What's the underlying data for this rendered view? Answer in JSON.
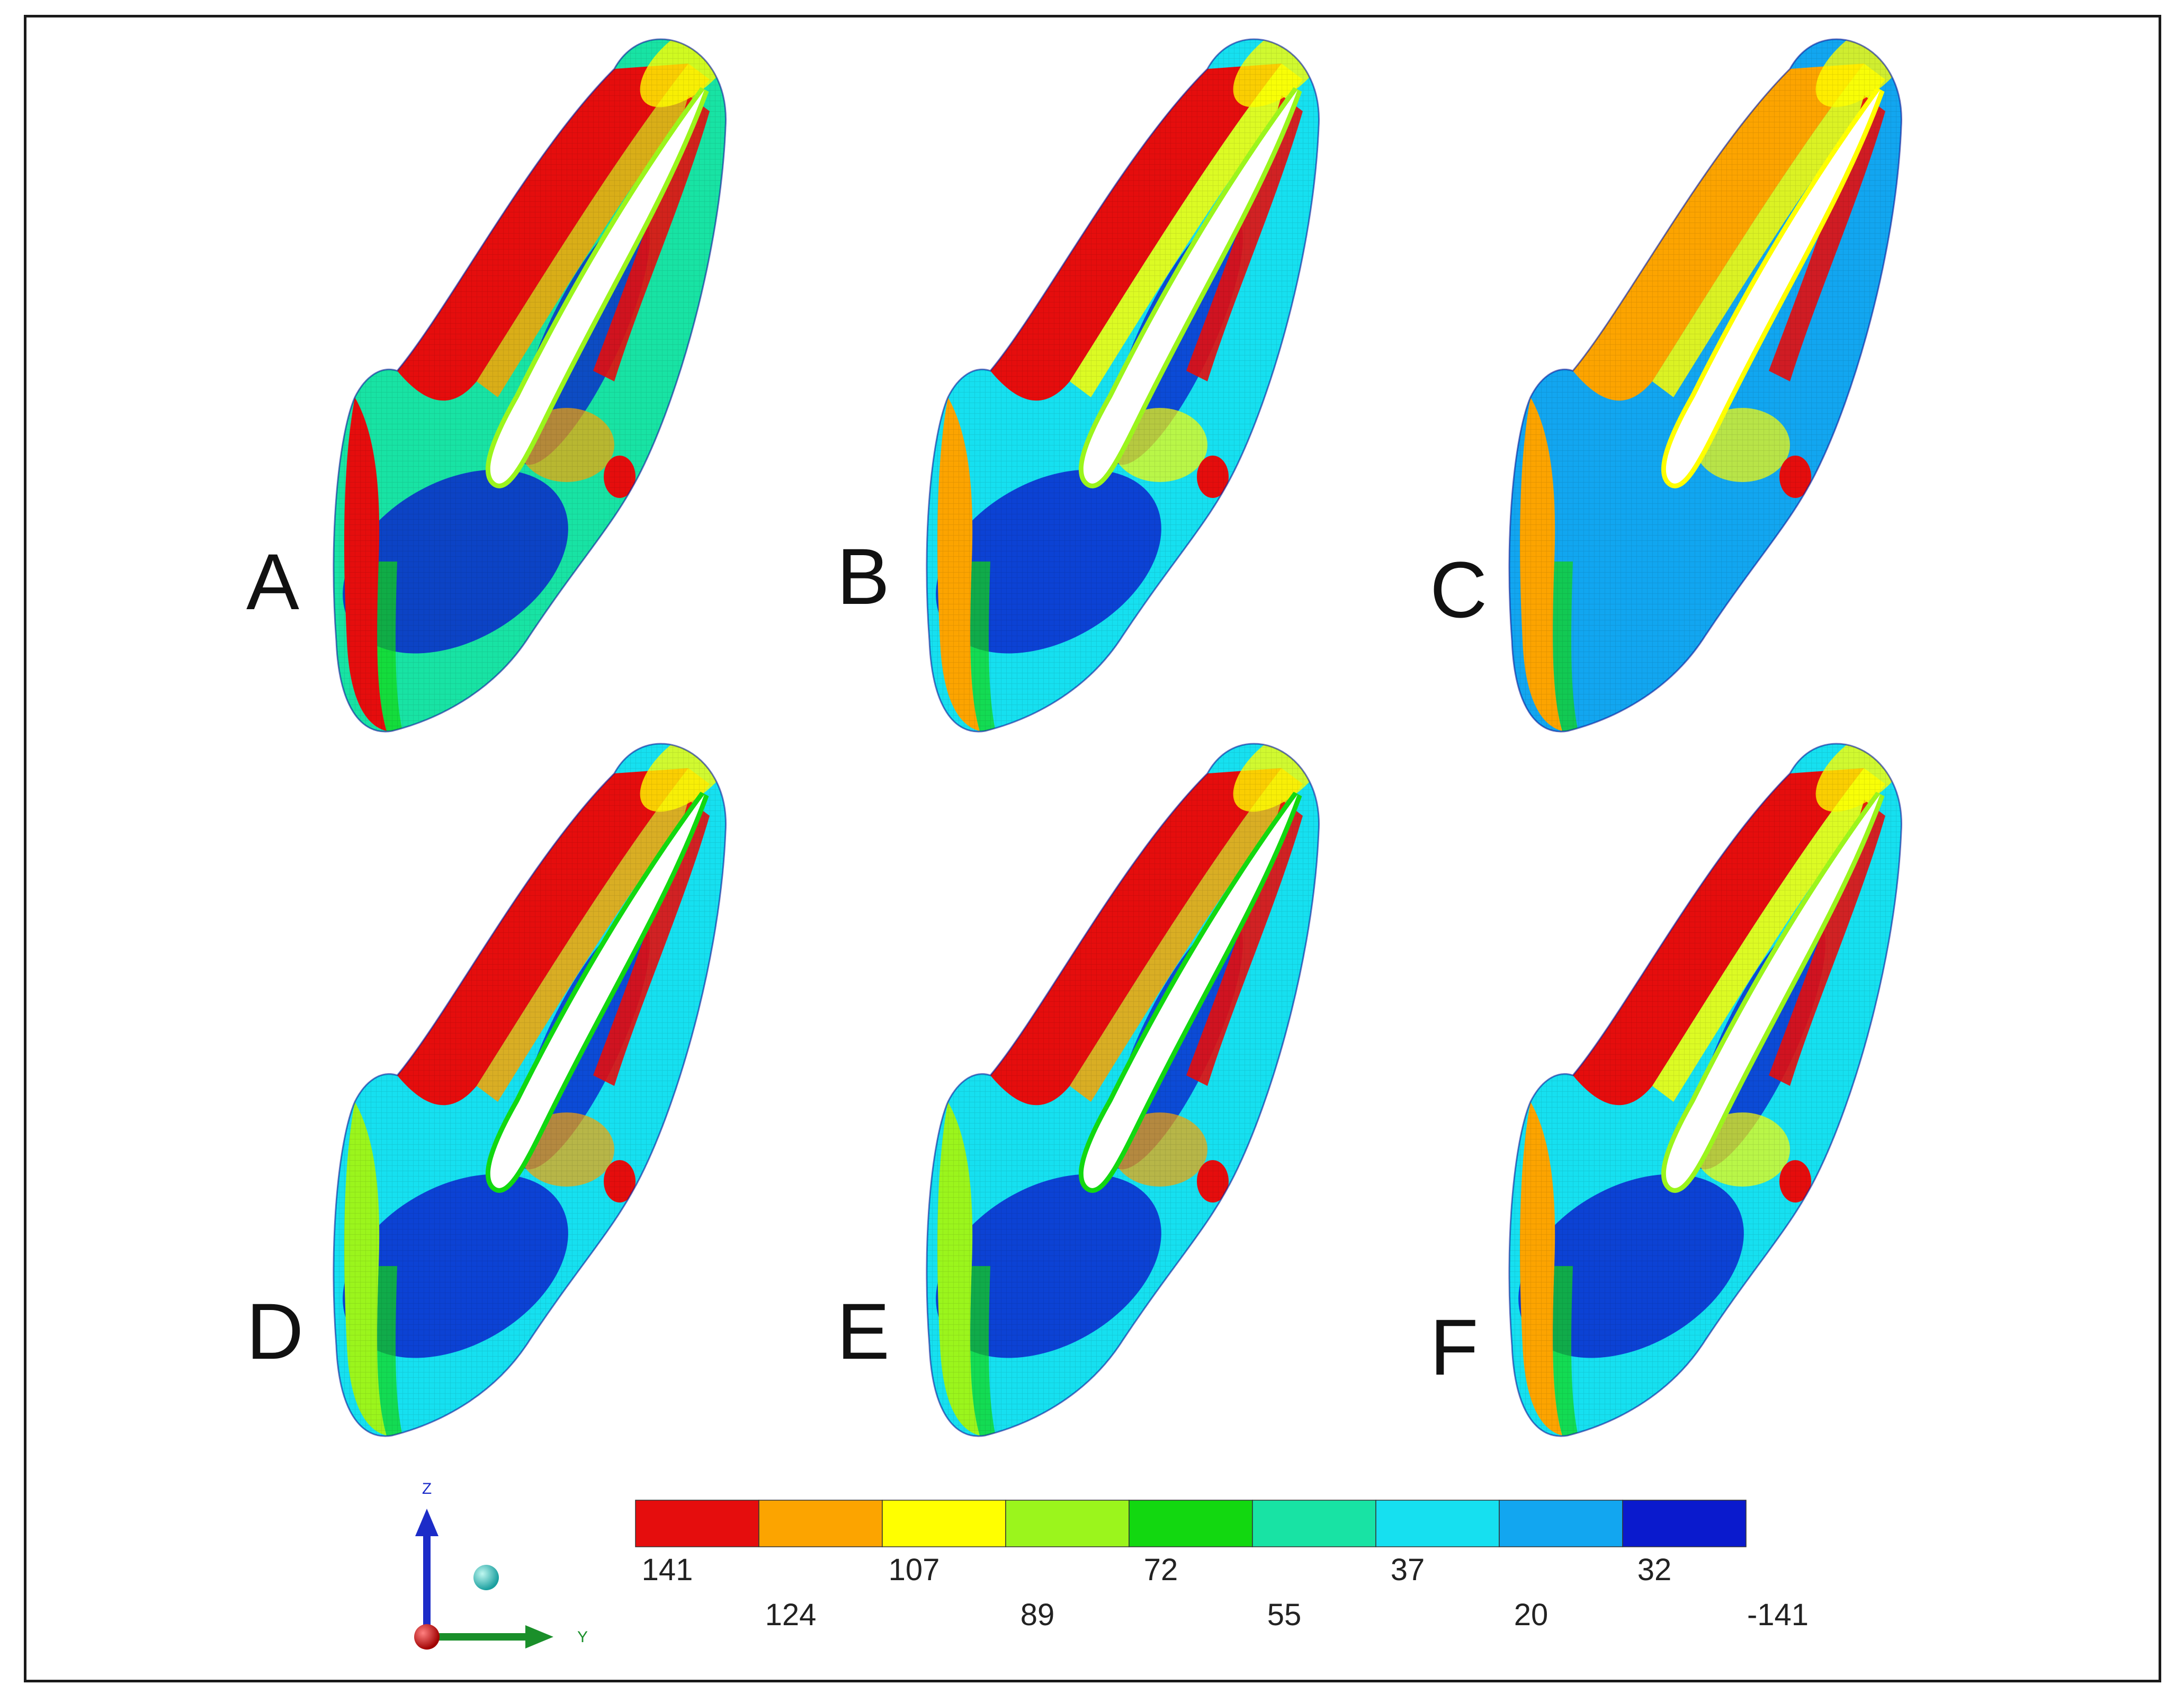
{
  "panels": [
    {
      "label": "A",
      "variant": "high"
    },
    {
      "label": "B",
      "variant": "mid"
    },
    {
      "label": "C",
      "variant": "orange"
    },
    {
      "label": "D",
      "variant": "low"
    },
    {
      "label": "E",
      "variant": "low"
    },
    {
      "label": "F",
      "variant": "mid"
    }
  ],
  "legend": {
    "colors": [
      "#e50d0d",
      "#fca400",
      "#ffff00",
      "#9bf51c",
      "#12d810",
      "#18e3a4",
      "#16e0f0",
      "#12a6f0",
      "#0a1acd"
    ],
    "upper_values": [
      "141",
      "107",
      "72",
      "37",
      "32"
    ],
    "lower_values": [
      "124",
      "89",
      "55",
      "20",
      "-141"
    ]
  },
  "axes": {
    "z_label": "Z",
    "y_label": "Y",
    "z_color": "#1c2cc8",
    "y_color": "#1a8f2a",
    "origin_color": "#c00000",
    "x_sphere_color": "#1fb0b0"
  }
}
